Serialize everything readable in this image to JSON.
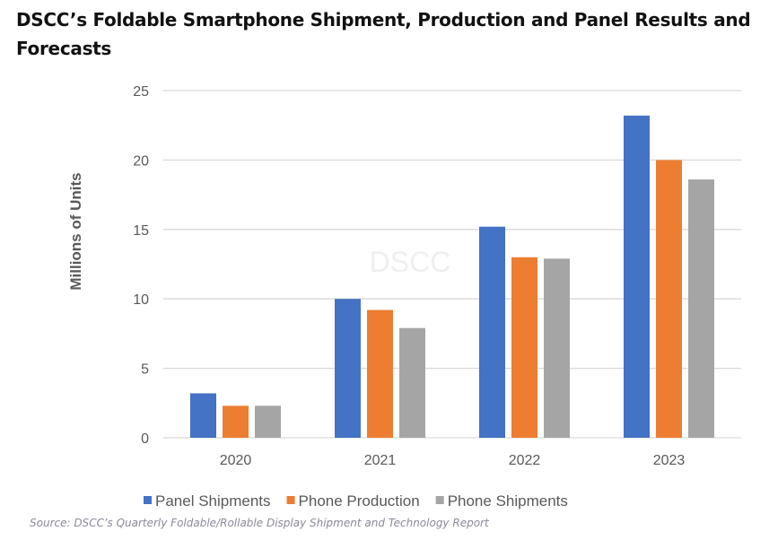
{
  "title": "DSCC’s Foldable Smartphone Shipment, Production and Panel Results and Forecasts",
  "source": "Source: DSCC’s Quarterly Foldable/Rollable Display Shipment and Technology Report",
  "chart_data": {
    "type": "bar",
    "title": "",
    "xlabel": "",
    "ylabel": "Millions of Units",
    "ylim": [
      0,
      25
    ],
    "yticks": [
      "0",
      "5",
      "10",
      "15",
      "20",
      "25"
    ],
    "grid": true,
    "legend": "bottom",
    "watermark": "DSCC",
    "categories": [
      "2020",
      "2021",
      "2022",
      "2023"
    ],
    "series": [
      {
        "name": "Panel Shipments",
        "color": "#4472C4",
        "values": [
          3.2,
          10.0,
          15.2,
          23.2
        ]
      },
      {
        "name": "Phone Production",
        "color": "#ED7D31",
        "values": [
          2.3,
          9.2,
          13.0,
          20.0
        ]
      },
      {
        "name": "Phone Shipments",
        "color": "#A5A5A5",
        "values": [
          2.3,
          7.9,
          12.9,
          18.6
        ]
      }
    ]
  }
}
